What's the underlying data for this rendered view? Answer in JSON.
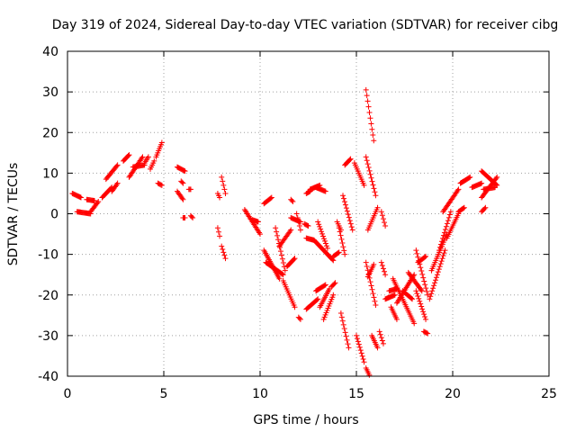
{
  "chart_data": {
    "type": "scatter",
    "title": "Day 319 of 2024, Sidereal Day-to-day VTEC variation (SDTVAR) for receiver cibg",
    "xlabel": "GPS time / hours",
    "ylabel": "SDTVAR / TECUs",
    "xlim": [
      0,
      25
    ],
    "ylim": [
      -40,
      40
    ],
    "xticks": [
      0,
      5,
      10,
      15,
      20,
      25
    ],
    "yticks": [
      -40,
      -30,
      -20,
      -10,
      0,
      10,
      20,
      30,
      40
    ],
    "grid": true,
    "marker": "+",
    "color": "#ff0000",
    "tracks": [
      {
        "x0": 0.25,
        "y0": 5.0,
        "x1": 0.7,
        "y1": 4.0
      },
      {
        "x0": 0.5,
        "y0": 0.5,
        "x1": 1.2,
        "y1": 0.0
      },
      {
        "x0": 1.0,
        "y0": 3.5,
        "x1": 1.4,
        "y1": 3.2
      },
      {
        "x0": 1.2,
        "y0": 0.5,
        "x1": 1.6,
        "y1": 3.0
      },
      {
        "x0": 1.8,
        "y0": 4.0,
        "x1": 2.3,
        "y1": 6.5
      },
      {
        "x0": 2.0,
        "y0": 8.5,
        "x1": 2.6,
        "y1": 12.0
      },
      {
        "x0": 2.3,
        "y0": 5.5,
        "x1": 2.6,
        "y1": 7.5
      },
      {
        "x0": 2.9,
        "y0": 13.0,
        "x1": 3.2,
        "y1": 14.5
      },
      {
        "x0": 3.2,
        "y0": 9.0,
        "x1": 3.9,
        "y1": 14.0
      },
      {
        "x0": 3.4,
        "y0": 11.5,
        "x1": 4.0,
        "y1": 12.0
      },
      {
        "x0": 4.0,
        "y0": 12.5,
        "x1": 4.2,
        "y1": 14.0
      },
      {
        "x0": 4.3,
        "y0": 11.0,
        "x1": 4.5,
        "y1": 13.0
      },
      {
        "x0": 4.6,
        "y0": 14.0,
        "x1": 4.9,
        "y1": 17.5
      },
      {
        "x0": 4.7,
        "y0": 7.5,
        "x1": 4.9,
        "y1": 7.0
      },
      {
        "x0": 5.7,
        "y0": 11.5,
        "x1": 6.1,
        "y1": 10.5
      },
      {
        "x0": 5.7,
        "y0": 5.5,
        "x1": 6.0,
        "y1": 3.5
      },
      {
        "x0": 5.9,
        "y0": 8.0,
        "x1": 6.0,
        "y1": 7.5
      },
      {
        "x0": 6.0,
        "y0": -1.0,
        "x1": 6.1,
        "y1": -1.0
      },
      {
        "x0": 6.3,
        "y0": 6.0,
        "x1": 6.4,
        "y1": 6.0
      },
      {
        "x0": 6.4,
        "y0": -0.5,
        "x1": 6.5,
        "y1": -1.0
      },
      {
        "x0": 7.8,
        "y0": -3.5,
        "x1": 7.9,
        "y1": -5.5
      },
      {
        "x0": 7.8,
        "y0": 5.0,
        "x1": 7.9,
        "y1": 4.0
      },
      {
        "x0": 8.0,
        "y0": 9.0,
        "x1": 8.2,
        "y1": 5.0
      },
      {
        "x0": 8.0,
        "y0": -8.0,
        "x1": 8.2,
        "y1": -11.0
      },
      {
        "x0": 9.2,
        "y0": 1.0,
        "x1": 10.0,
        "y1": -5.0
      },
      {
        "x0": 9.6,
        "y0": -1.5,
        "x1": 9.9,
        "y1": -2.0
      },
      {
        "x0": 10.2,
        "y0": 2.5,
        "x1": 10.6,
        "y1": 4.0
      },
      {
        "x0": 10.2,
        "y0": -9.0,
        "x1": 11.0,
        "y1": -16.0
      },
      {
        "x0": 10.3,
        "y0": -12.0,
        "x1": 11.2,
        "y1": -15.0
      },
      {
        "x0": 10.8,
        "y0": -3.5,
        "x1": 11.3,
        "y1": -14.0
      },
      {
        "x0": 11.0,
        "y0": -8.0,
        "x1": 11.6,
        "y1": -4.0
      },
      {
        "x0": 11.2,
        "y0": -16.5,
        "x1": 11.8,
        "y1": -23.0
      },
      {
        "x0": 11.4,
        "y0": -13.0,
        "x1": 11.8,
        "y1": -11.0
      },
      {
        "x0": 11.6,
        "y0": 3.5,
        "x1": 11.7,
        "y1": 3.0
      },
      {
        "x0": 11.6,
        "y0": -1.0,
        "x1": 12.1,
        "y1": -2.0
      },
      {
        "x0": 11.9,
        "y0": 0.0,
        "x1": 12.1,
        "y1": -4.0
      },
      {
        "x0": 12.0,
        "y0": -25.5,
        "x1": 12.1,
        "y1": -26.0
      },
      {
        "x0": 12.3,
        "y0": -2.5,
        "x1": 12.5,
        "y1": -3.0
      },
      {
        "x0": 12.4,
        "y0": 5.0,
        "x1": 12.6,
        "y1": 5.5
      },
      {
        "x0": 12.6,
        "y0": 6.0,
        "x1": 13.1,
        "y1": 7.0
      },
      {
        "x0": 12.9,
        "y0": 6.5,
        "x1": 13.4,
        "y1": 5.5
      },
      {
        "x0": 12.4,
        "y0": -6.0,
        "x1": 12.8,
        "y1": -6.5
      },
      {
        "x0": 12.4,
        "y0": -23.5,
        "x1": 13.0,
        "y1": -21.0
      },
      {
        "x0": 12.9,
        "y0": -19.0,
        "x1": 13.4,
        "y1": -17.5
      },
      {
        "x0": 12.8,
        "y0": -6.5,
        "x1": 13.8,
        "y1": -11.5
      },
      {
        "x0": 13.0,
        "y0": -2.0,
        "x1": 13.5,
        "y1": -8.5
      },
      {
        "x0": 13.1,
        "y0": -23.0,
        "x1": 13.6,
        "y1": -18.5
      },
      {
        "x0": 13.3,
        "y0": -26.0,
        "x1": 13.8,
        "y1": -20.0
      },
      {
        "x0": 13.7,
        "y0": -18.0,
        "x1": 13.9,
        "y1": -17.0
      },
      {
        "x0": 13.8,
        "y0": -10.5,
        "x1": 14.1,
        "y1": -9.5
      },
      {
        "x0": 14.0,
        "y0": -2.0,
        "x1": 14.2,
        "y1": -4.0
      },
      {
        "x0": 14.1,
        "y0": -3.5,
        "x1": 14.4,
        "y1": -10.0
      },
      {
        "x0": 14.2,
        "y0": -24.5,
        "x1": 14.6,
        "y1": -33.0
      },
      {
        "x0": 14.3,
        "y0": 4.5,
        "x1": 14.8,
        "y1": -4.0
      },
      {
        "x0": 14.4,
        "y0": 12.0,
        "x1": 14.7,
        "y1": 13.5
      },
      {
        "x0": 14.9,
        "y0": 12.5,
        "x1": 15.4,
        "y1": 7.0
      },
      {
        "x0": 15.0,
        "y0": -30.0,
        "x1": 15.4,
        "y1": -36.5
      },
      {
        "x0": 15.5,
        "y0": -38.0,
        "x1": 15.8,
        "y1": -41.0
      },
      {
        "x0": 15.5,
        "y0": 30.5,
        "x1": 15.9,
        "y1": 18.0
      },
      {
        "x0": 15.5,
        "y0": 14.0,
        "x1": 16.0,
        "y1": 4.5
      },
      {
        "x0": 15.5,
        "y0": -12.0,
        "x1": 16.0,
        "y1": -22.5
      },
      {
        "x0": 15.6,
        "y0": -15.5,
        "x1": 15.9,
        "y1": -12.5
      },
      {
        "x0": 15.6,
        "y0": -4.0,
        "x1": 16.1,
        "y1": 1.5
      },
      {
        "x0": 15.8,
        "y0": -30.0,
        "x1": 16.1,
        "y1": -33.0
      },
      {
        "x0": 16.2,
        "y0": -29.0,
        "x1": 16.4,
        "y1": -32.0
      },
      {
        "x0": 16.3,
        "y0": 0.5,
        "x1": 16.5,
        "y1": -3.0
      },
      {
        "x0": 16.3,
        "y0": -12.0,
        "x1": 16.5,
        "y1": -15.0
      },
      {
        "x0": 16.5,
        "y0": -21.0,
        "x1": 17.0,
        "y1": -20.0
      },
      {
        "x0": 16.7,
        "y0": -19.0,
        "x1": 17.1,
        "y1": -18.5
      },
      {
        "x0": 16.8,
        "y0": -23.0,
        "x1": 17.1,
        "y1": -26.0
      },
      {
        "x0": 16.9,
        "y0": -16.0,
        "x1": 18.0,
        "y1": -27.0
      },
      {
        "x0": 17.1,
        "y0": -22.0,
        "x1": 18.0,
        "y1": -15.0
      },
      {
        "x0": 17.4,
        "y0": -19.0,
        "x1": 17.9,
        "y1": -21.0
      },
      {
        "x0": 17.7,
        "y0": -14.5,
        "x1": 18.4,
        "y1": -19.0
      },
      {
        "x0": 18.1,
        "y0": -19.0,
        "x1": 18.6,
        "y1": -26.0
      },
      {
        "x0": 18.1,
        "y0": -9.0,
        "x1": 18.7,
        "y1": -20.0
      },
      {
        "x0": 18.2,
        "y0": -12.0,
        "x1": 18.6,
        "y1": -10.5
      },
      {
        "x0": 18.5,
        "y0": -29.0,
        "x1": 18.7,
        "y1": -29.5
      },
      {
        "x0": 18.8,
        "y0": -21.0,
        "x1": 19.6,
        "y1": -9.0
      },
      {
        "x0": 18.9,
        "y0": -14.0,
        "x1": 19.7,
        "y1": -5.0
      },
      {
        "x0": 19.3,
        "y0": -9.0,
        "x1": 19.9,
        "y1": 0.5
      },
      {
        "x0": 19.5,
        "y0": 0.5,
        "x1": 20.3,
        "y1": 6.0
      },
      {
        "x0": 19.7,
        "y0": -6.0,
        "x1": 20.3,
        "y1": 0.0
      },
      {
        "x0": 20.3,
        "y0": 0.5,
        "x1": 20.6,
        "y1": 1.5
      },
      {
        "x0": 20.4,
        "y0": 7.5,
        "x1": 20.9,
        "y1": 9.0
      },
      {
        "x0": 21.0,
        "y0": 6.5,
        "x1": 21.5,
        "y1": 7.5
      },
      {
        "x0": 21.5,
        "y0": 0.5,
        "x1": 21.7,
        "y1": 1.5
      },
      {
        "x0": 21.5,
        "y0": 10.5,
        "x1": 22.3,
        "y1": 7.0
      },
      {
        "x0": 21.5,
        "y0": 4.0,
        "x1": 22.3,
        "y1": 9.0
      },
      {
        "x0": 21.6,
        "y0": 6.0,
        "x1": 22.2,
        "y1": 6.5
      }
    ]
  }
}
